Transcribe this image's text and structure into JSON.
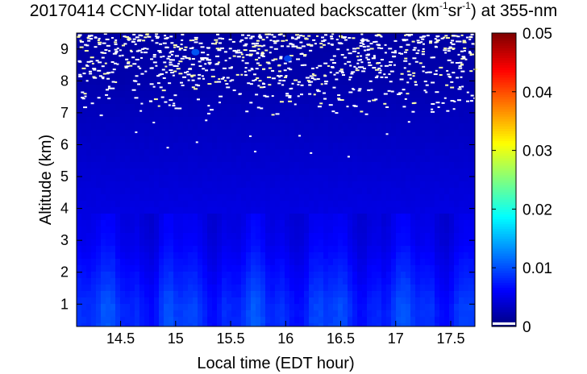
{
  "chart_data": {
    "type": "heatmap",
    "title_parts": {
      "lead": "20170414 CCNY-lidar total attenuated backscatter (km",
      "sup1": "-1",
      "mid": "sr",
      "sup2": "-1",
      "tail": ") at 355-nm"
    },
    "xlabel": "Local time (EDT hour)",
    "ylabel": "Altitude (km)",
    "xlim": [
      14.1,
      17.72
    ],
    "ylim": [
      0.3,
      9.5
    ],
    "x_ticks": [
      14.5,
      15,
      15.5,
      16,
      16.5,
      17,
      17.5
    ],
    "x_tick_labels": [
      "14.5",
      "15",
      "15.5",
      "16",
      "16.5",
      "17",
      "17.5"
    ],
    "y_ticks": [
      1,
      2,
      3,
      4,
      5,
      6,
      7,
      8,
      9
    ],
    "y_tick_labels": [
      "1",
      "2",
      "3",
      "4",
      "5",
      "6",
      "7",
      "8",
      "9"
    ],
    "colorbar": {
      "colormap": "jet",
      "range": [
        0,
        0.05
      ],
      "ticks": [
        0,
        0.01,
        0.02,
        0.03,
        0.04,
        0.05
      ],
      "tick_labels": [
        "0",
        "0.01",
        "0.02",
        "0.03",
        "0.04",
        "0.05"
      ],
      "under_color": "#ffffff"
    },
    "field_description": {
      "altitude_profile_km": [
        0.3,
        1.0,
        2.0,
        3.0,
        4.0,
        5.0,
        6.0,
        7.0,
        8.0,
        9.5
      ],
      "backscatter_profile": [
        0.0085,
        0.0085,
        0.007,
        0.0055,
        0.0048,
        0.0042,
        0.0036,
        0.003,
        0.0022,
        0.0018
      ],
      "noise_region_km": [
        6.8,
        9.5
      ],
      "notable_features": [
        {
          "time": 15.18,
          "altitude_km": 8.9,
          "value": 0.011
        },
        {
          "time": 16.02,
          "altitude_km": 8.7,
          "value": 0.01
        }
      ]
    }
  }
}
